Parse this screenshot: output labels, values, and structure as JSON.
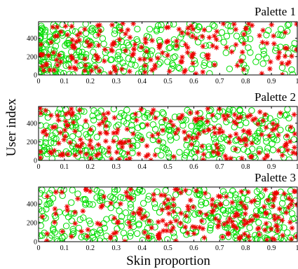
{
  "chart_data": [
    {
      "type": "scatter",
      "title": "Palette 1",
      "xlim": [
        0,
        1
      ],
      "ylim": [
        0,
        580
      ],
      "xticks": [
        0,
        0.1,
        0.2,
        0.3,
        0.4,
        0.5,
        0.6,
        0.7,
        0.8,
        0.9,
        1
      ],
      "yticks": [
        0,
        200,
        400
      ],
      "xtick_labels": [
        "0",
        "0.1",
        "0.2",
        "0.3",
        "0.4",
        "0.5",
        "0.6",
        "0.7",
        "0.8",
        "0.9",
        "1"
      ],
      "ytick_labels": [
        "0",
        "200",
        "400"
      ],
      "grid": false,
      "series": [
        {
          "marker": "circle",
          "color": "#00dd00",
          "count": 320,
          "skew": 1.9
        },
        {
          "marker": "star",
          "color": "#ee0000",
          "count": 190,
          "skew": 1.1
        }
      ]
    },
    {
      "type": "scatter",
      "title": "Palette 2",
      "xlim": [
        0,
        1
      ],
      "ylim": [
        0,
        580
      ],
      "xticks": [
        0,
        0.1,
        0.2,
        0.3,
        0.4,
        0.5,
        0.6,
        0.7,
        0.8,
        0.9,
        1
      ],
      "yticks": [
        0,
        200,
        400
      ],
      "xtick_labels": [
        "0",
        "0.1",
        "0.2",
        "0.3",
        "0.4",
        "0.5",
        "0.6",
        "0.7",
        "0.8",
        "0.9",
        "1"
      ],
      "ytick_labels": [
        "0",
        "200",
        "400"
      ],
      "grid": false,
      "series": [
        {
          "marker": "circle",
          "color": "#00dd00",
          "count": 330,
          "skew": 1.2
        },
        {
          "marker": "star",
          "color": "#ee0000",
          "count": 210,
          "skew": 0.95
        }
      ]
    },
    {
      "type": "scatter",
      "title": "Palette 3",
      "xlim": [
        0,
        1
      ],
      "ylim": [
        0,
        580
      ],
      "xticks": [
        0,
        0.1,
        0.2,
        0.3,
        0.4,
        0.5,
        0.6,
        0.7,
        0.8,
        0.9,
        1
      ],
      "yticks": [
        0,
        200,
        400
      ],
      "xtick_labels": [
        "0",
        "0.1",
        "0.2",
        "0.3",
        "0.4",
        "0.5",
        "0.6",
        "0.7",
        "0.8",
        "0.9",
        "1"
      ],
      "ytick_labels": [
        "0",
        "200",
        "400"
      ],
      "grid": false,
      "series": [
        {
          "marker": "circle",
          "color": "#00dd00",
          "count": 350,
          "skew": 1.05
        },
        {
          "marker": "star",
          "color": "#ee0000",
          "count": 200,
          "skew": 0.75
        }
      ]
    }
  ],
  "shared_axes": {
    "xlabel": "Skin proportion",
    "ylabel": "User index"
  }
}
